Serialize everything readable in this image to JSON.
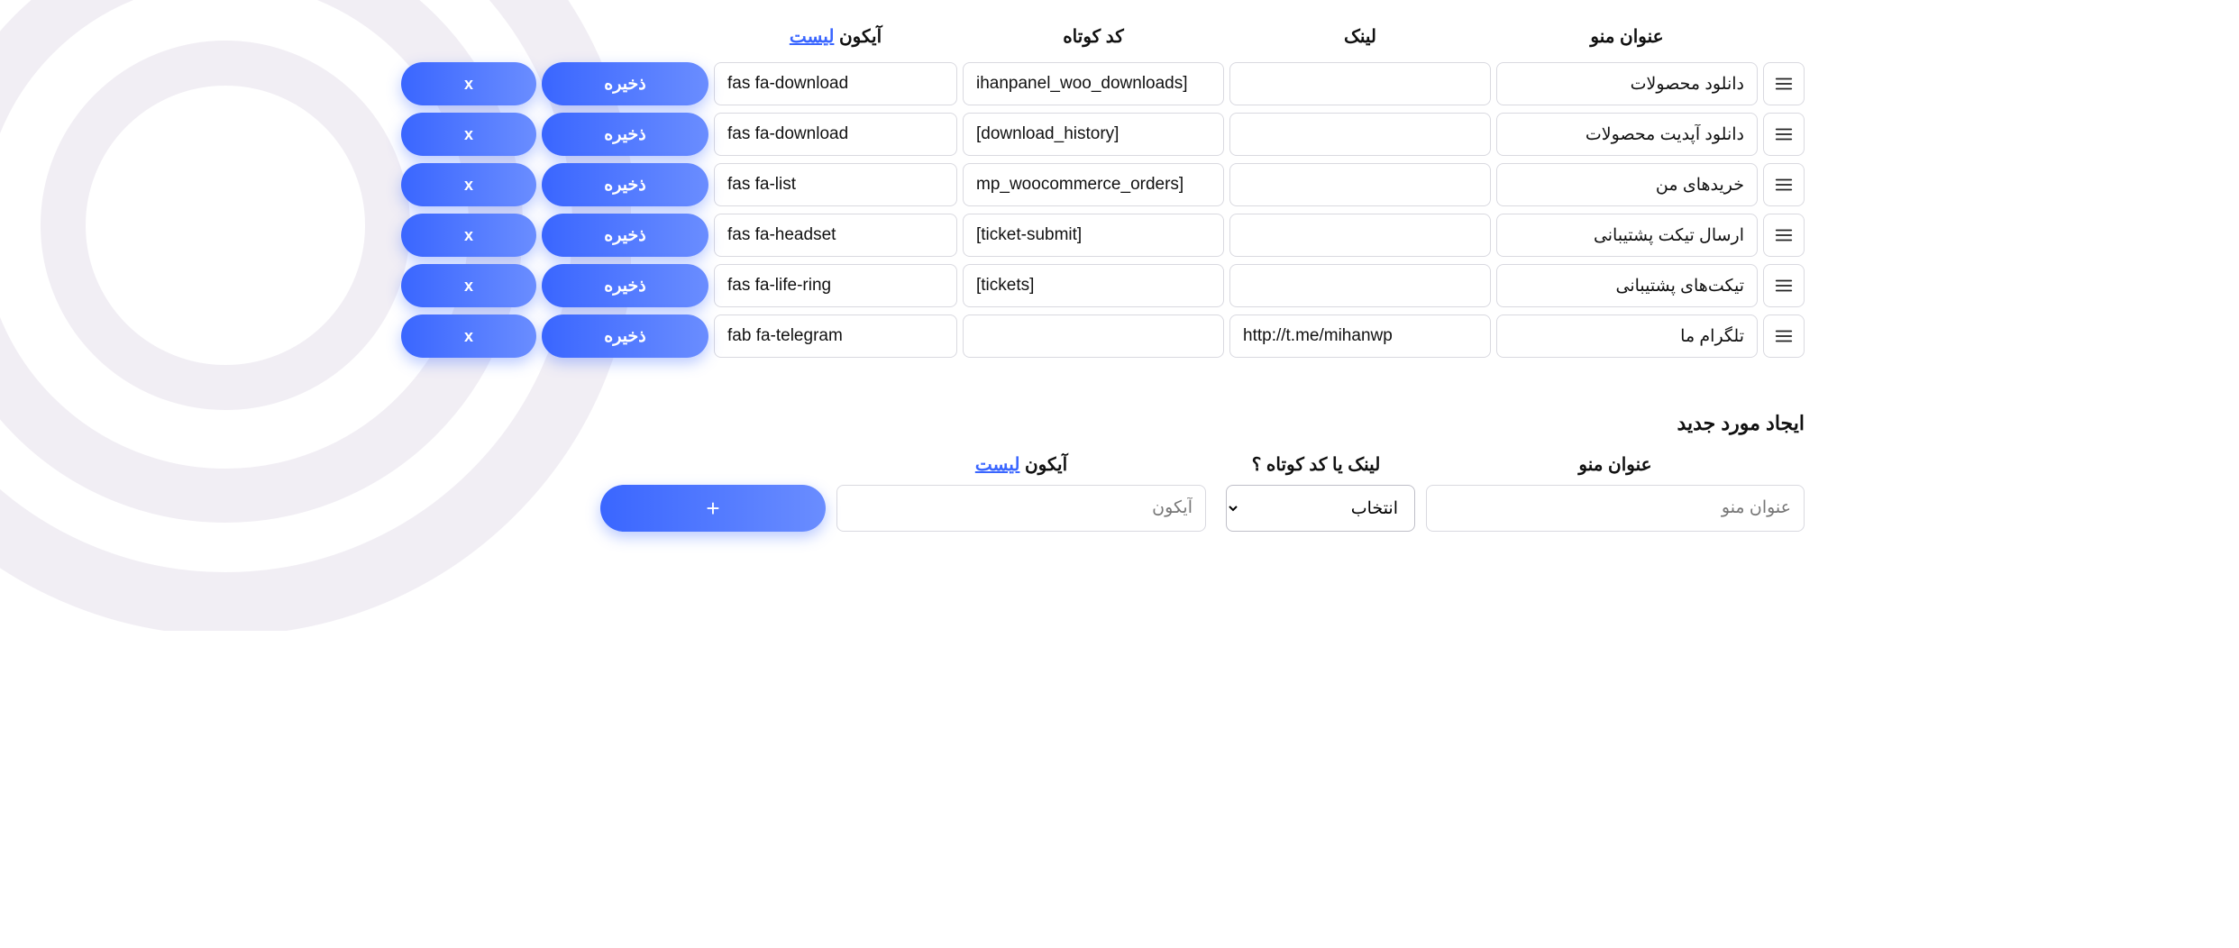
{
  "colors": {
    "button_gradient_start": "#3a66ff",
    "button_gradient_end": "#6a8dff",
    "link": "#3a66ff",
    "border": "#d9d9e0",
    "text": "#111111",
    "placeholder": "#777777",
    "bg_swirl": "#c9bdd6"
  },
  "table": {
    "headers": {
      "title": "عنوان منو",
      "link": "لینک",
      "shortcode": "کد کوتاه",
      "icon_prefix": "آیکون ",
      "icon_link_text": "لیست"
    },
    "save_label": "ذخیره",
    "delete_label": "x",
    "rows": [
      {
        "title": "دانلود محصولات",
        "link": "",
        "shortcode": "ihanpanel_woo_downloads]",
        "icon": "fas fa-download"
      },
      {
        "title": "دانلود آپدیت محصولات",
        "link": "",
        "shortcode": "[download_history]",
        "icon": "fas fa-download"
      },
      {
        "title": "خریدهای من",
        "link": "",
        "shortcode": "mp_woocommerce_orders]",
        "icon": "fas fa-list"
      },
      {
        "title": "ارسال تیکت پشتیبانی",
        "link": "",
        "shortcode": "[ticket-submit]",
        "icon": "fas fa-headset"
      },
      {
        "title": "تیکت‌های پشتیبانی",
        "link": "",
        "shortcode": "[tickets]",
        "icon": "fas fa-life-ring"
      },
      {
        "title": "تلگرام ما",
        "link": "http://t.me/mihanwp",
        "shortcode": "",
        "icon": "fab fa-telegram"
      }
    ]
  },
  "new_item": {
    "section_title": "ایجاد مورد جدید",
    "headers": {
      "title": "عنوان منو",
      "link_or_shortcode": "لینک یا کد کوتاه ؟",
      "icon_prefix": "آیکون ",
      "icon_link_text": "لیست"
    },
    "title_placeholder": "عنوان منو",
    "select_placeholder": "انتخاب",
    "icon_placeholder": "آیکون",
    "add_label": "+"
  }
}
